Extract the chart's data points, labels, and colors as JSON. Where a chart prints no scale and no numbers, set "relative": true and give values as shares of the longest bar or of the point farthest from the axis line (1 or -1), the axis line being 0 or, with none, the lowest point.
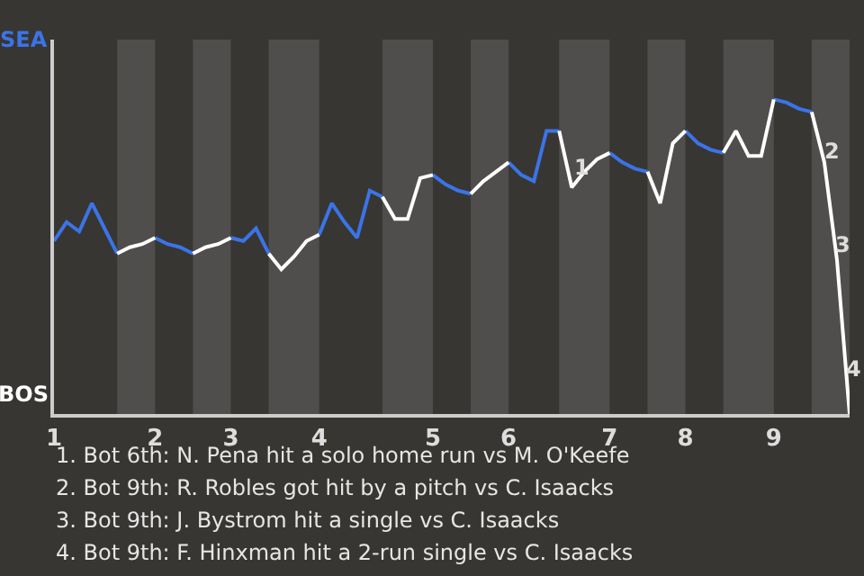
{
  "chart_data": {
    "type": "line",
    "relative": true,
    "categories": [
      "1",
      null,
      null,
      null,
      null,
      null,
      null,
      null,
      "2",
      null,
      null,
      null,
      null,
      null,
      "3",
      null,
      null,
      null,
      null,
      null,
      null,
      "4",
      null,
      null,
      null,
      null,
      null,
      null,
      null,
      null,
      "5",
      null,
      null,
      null,
      null,
      null,
      "6",
      null,
      null,
      null,
      null,
      null,
      null,
      null,
      "7",
      null,
      null,
      null,
      null,
      null,
      "8",
      null,
      null,
      null,
      null,
      null,
      null,
      "9",
      null,
      null,
      null,
      null,
      null,
      null
    ],
    "series": [
      {
        "color": "#3b74e8",
        "values": [
          0.55,
          0.61,
          0.58,
          0.67,
          0.59,
          0.51,
          null,
          null,
          0.56,
          0.54,
          0.53,
          0.51,
          null,
          null,
          0.56,
          0.55,
          0.59,
          0.51,
          null,
          null,
          null,
          0.57,
          0.67,
          0.61,
          0.56,
          0.71,
          0.69,
          null,
          null,
          null,
          0.76,
          0.73,
          0.71,
          0.7,
          null,
          null,
          0.8,
          0.76,
          0.74,
          0.9,
          0.9,
          null,
          null,
          null,
          0.83,
          0.8,
          0.78,
          0.77,
          null,
          null,
          0.9,
          0.86,
          0.84,
          0.83,
          null,
          null,
          null,
          1,
          0.99,
          0.97,
          0.96,
          null,
          null,
          null
        ]
      },
      {
        "color": "#ffffff",
        "values": [
          null,
          null,
          null,
          null,
          null,
          0.51,
          0.53,
          0.54,
          0.56,
          null,
          null,
          0.51,
          0.53,
          0.54,
          0.56,
          null,
          null,
          0.51,
          0.46,
          0.5,
          0.55,
          0.57,
          null,
          null,
          null,
          null,
          0.69,
          0.62,
          0.62,
          0.75,
          0.76,
          null,
          null,
          0.7,
          0.74,
          0.77,
          0.8,
          null,
          null,
          null,
          0.9,
          0.72,
          0.77,
          0.81,
          0.83,
          null,
          null,
          0.77,
          0.67,
          0.86,
          0.9,
          null,
          null,
          0.83,
          0.9,
          0.82,
          0.82,
          1,
          null,
          null,
          0.96,
          0.8,
          0.49,
          0
        ]
      }
    ],
    "annotations": [
      "SEA",
      "BOS",
      "1",
      "2",
      "3",
      "4",
      "1. Bot 6th: N. Pena hit a solo home run vs M. O'Keefe",
      "2. Bot 9th: R. Robles got hit by a pitch vs C. Isaacks",
      "3. Bot 9th: J. Bystrom hit a single vs C. Isaacks",
      "4. Bot 9th: F. Hinxman hit a 2-run single vs C. Isaacks"
    ]
  }
}
